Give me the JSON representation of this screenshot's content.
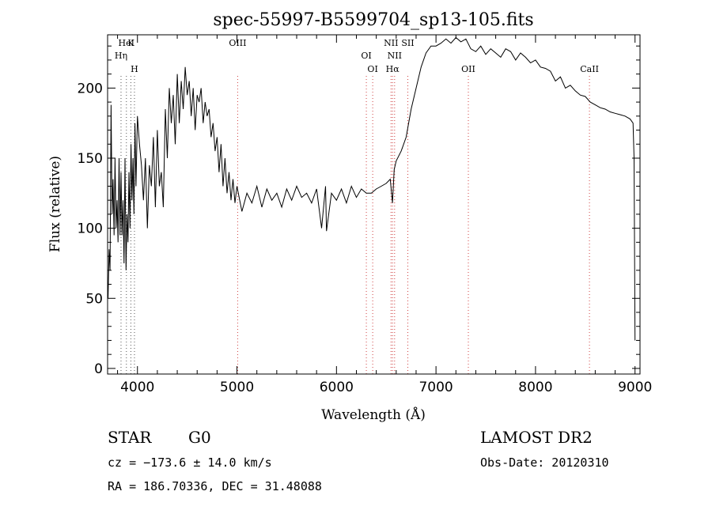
{
  "chart_data": {
    "type": "line",
    "title": "spec-55997-B5599704_sp13-105.fits",
    "xlabel": "Wavelength (Å)",
    "ylabel": "Flux (relative)",
    "xlim": [
      3700,
      9050
    ],
    "ylim": [
      -4,
      238
    ],
    "xticks": [
      4000,
      5000,
      6000,
      7000,
      8000,
      9000
    ],
    "yticks": [
      0,
      50,
      100,
      150,
      200
    ],
    "grid": false,
    "series": [
      {
        "x": [
          3705,
          3715,
          3725,
          3735,
          3745,
          3755,
          3765,
          3775,
          3785,
          3795,
          3805,
          3815,
          3825,
          3835,
          3845,
          3855,
          3865,
          3875,
          3885,
          3895,
          3905,
          3915,
          3925,
          3935,
          3945,
          3955,
          3965,
          3975,
          3985,
          4000,
          4020,
          4040,
          4060,
          4080,
          4100,
          4120,
          4140,
          4160,
          4180,
          4200,
          4220,
          4240,
          4260,
          4280,
          4300,
          4320,
          4340,
          4360,
          4380,
          4400,
          4420,
          4440,
          4460,
          4480,
          4500,
          4520,
          4540,
          4560,
          4580,
          4600,
          4620,
          4640,
          4660,
          4680,
          4700,
          4720,
          4740,
          4760,
          4780,
          4800,
          4820,
          4840,
          4860,
          4880,
          4900,
          4920,
          4940,
          4960,
          4980,
          5000,
          5050,
          5100,
          5150,
          5200,
          5250,
          5300,
          5350,
          5400,
          5450,
          5500,
          5550,
          5600,
          5650,
          5700,
          5750,
          5800,
          5850,
          5890,
          5900,
          5950,
          6000,
          6050,
          6100,
          6150,
          6200,
          6250,
          6300,
          6350,
          6400,
          6450,
          6500,
          6540,
          6563,
          6580,
          6600,
          6650,
          6700,
          6750,
          6800,
          6850,
          6900,
          6950,
          7000,
          7050,
          7100,
          7150,
          7200,
          7250,
          7300,
          7350,
          7400,
          7450,
          7500,
          7550,
          7600,
          7650,
          7700,
          7750,
          7800,
          7850,
          7900,
          7950,
          8000,
          8050,
          8100,
          8150,
          8200,
          8250,
          8300,
          8350,
          8400,
          8450,
          8500,
          8550,
          8600,
          8650,
          8700,
          8750,
          8800,
          8850,
          8900,
          8950,
          8980,
          8990,
          9000
        ],
        "y": [
          50,
          85,
          70,
          188,
          110,
          135,
          95,
          150,
          100,
          120,
          90,
          150,
          95,
          140,
          95,
          120,
          75,
          150,
          70,
          110,
          90,
          140,
          100,
          160,
          120,
          150,
          110,
          175,
          130,
          180,
          160,
          145,
          120,
          150,
          100,
          145,
          130,
          165,
          115,
          170,
          130,
          140,
          115,
          185,
          150,
          200,
          175,
          195,
          160,
          210,
          175,
          205,
          185,
          215,
          195,
          205,
          180,
          200,
          170,
          195,
          190,
          200,
          175,
          190,
          180,
          185,
          165,
          175,
          155,
          165,
          140,
          160,
          130,
          150,
          125,
          140,
          120,
          135,
          118,
          130,
          112,
          125,
          118,
          130,
          115,
          128,
          120,
          125,
          115,
          128,
          120,
          130,
          122,
          125,
          118,
          128,
          100,
          130,
          98,
          125,
          120,
          128,
          118,
          130,
          122,
          128,
          125,
          125,
          128,
          130,
          132,
          135,
          118,
          142,
          148,
          155,
          165,
          185,
          200,
          215,
          225,
          230,
          230,
          232,
          235,
          232,
          236,
          233,
          235,
          228,
          226,
          230,
          224,
          228,
          225,
          222,
          228,
          226,
          220,
          225,
          222,
          218,
          220,
          215,
          214,
          212,
          205,
          208,
          200,
          202,
          198,
          195,
          194,
          190,
          188,
          186,
          185,
          183,
          182,
          181,
          180,
          178,
          175,
          150,
          20
        ]
      }
    ],
    "lines": [
      {
        "label": "HeI",
        "x": 3889
      },
      {
        "label": "Hη",
        "x": 3835
      },
      {
        "label": "H",
        "x": 3970
      },
      {
        "label": "K",
        "x": 3934
      },
      {
        "label": "OIII",
        "x": 5007
      },
      {
        "label": "OI",
        "x": 6300
      },
      {
        "label": "OI",
        "x": 6364
      },
      {
        "label": "NII",
        "x": 6548
      },
      {
        "label": "NII",
        "x": 6584
      },
      {
        "label": "SII",
        "x": 6717
      },
      {
        "label": "Hα",
        "x": 6563
      },
      {
        "label": "OII",
        "x": 7325
      },
      {
        "label": "CaII",
        "x": 8542
      }
    ]
  },
  "info": {
    "class": "STAR",
    "subclass": "G0",
    "survey": "LAMOST DR2",
    "cz": "cz = −173.6 ± 14.0 km/s",
    "obsdate": "Obs-Date: 20120310",
    "coords": "RA = 186.70336, DEC =  31.48088"
  },
  "colors": {
    "line_marker": "#d04040",
    "line_marker_dark": "#555555",
    "spectrum": "#000000"
  }
}
